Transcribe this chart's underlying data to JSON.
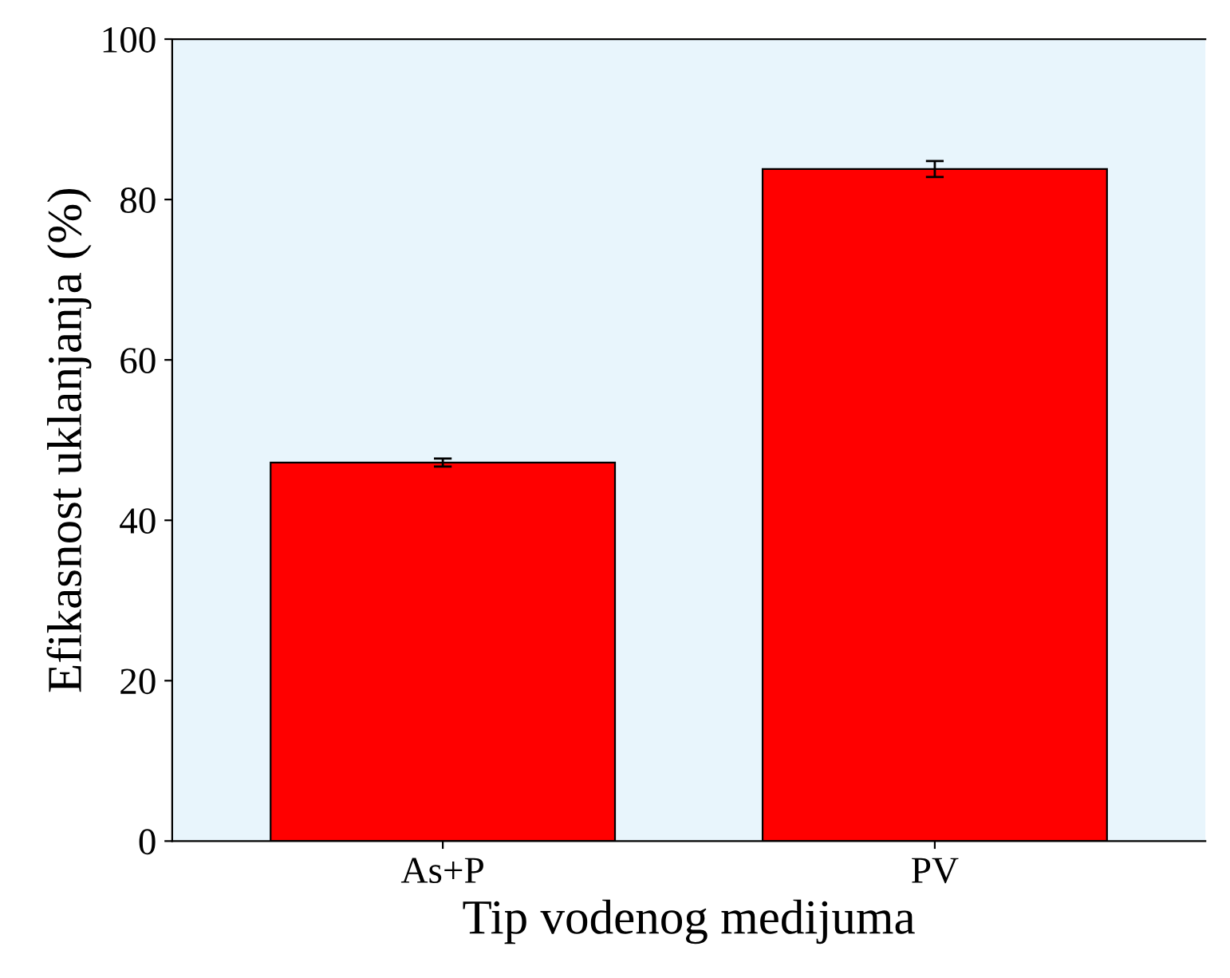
{
  "chart_data": {
    "type": "bar",
    "xlabel": "Tip vodenog medijuma",
    "ylabel": "Efikasnost uklanjanja (%)",
    "categories": [
      "As+P",
      "PV"
    ],
    "values": [
      47.2,
      83.8
    ],
    "errors": [
      0.5,
      1.0
    ],
    "color": "#ff0000",
    "ylim": [
      0,
      100
    ],
    "yticks": [
      0,
      20,
      40,
      60,
      80,
      100
    ],
    "grid": false
  }
}
